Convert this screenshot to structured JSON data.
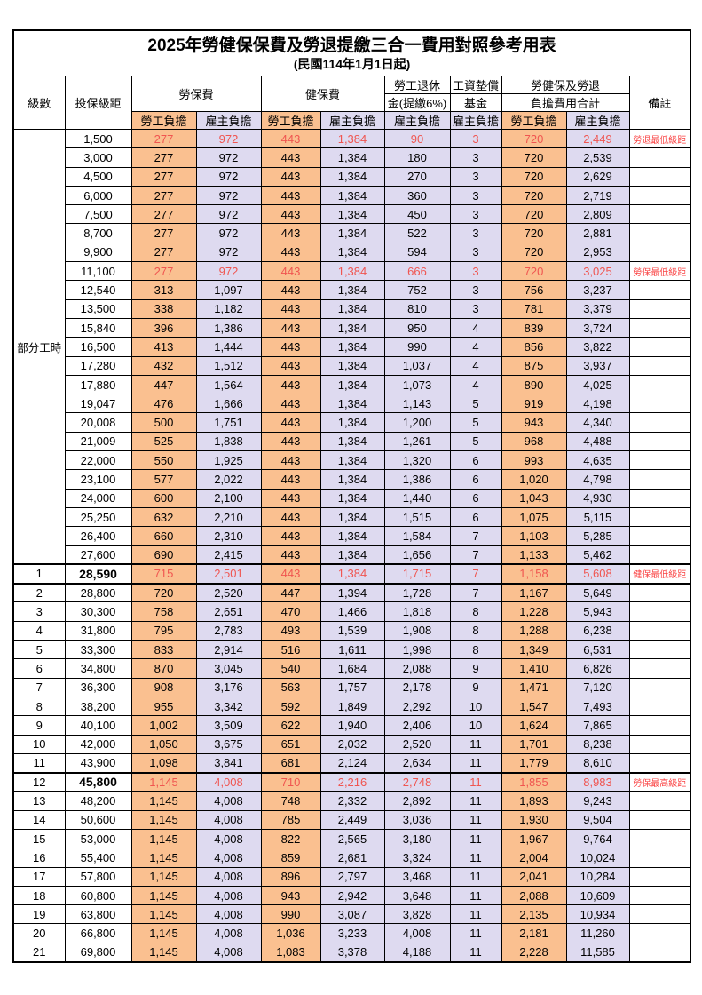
{
  "title": "2025年勞健保保費及勞退提繳三合一費用對照參考用表",
  "subtitle": "(民國114年1月1日起)",
  "colors": {
    "employee_bg": "#fac090",
    "employer_bg": "#dedaf0",
    "highlight_red": "#f05550",
    "remark_red": "#fa4343"
  },
  "header": {
    "level": "級數",
    "bracket": "投保級距",
    "labor_ins": "勞保費",
    "health_ins": "健保費",
    "pension_line1": "勞工退休",
    "pension_line2": "金(提繳6%)",
    "wage_fund_line1": "工資墊償",
    "wage_fund_line2": "基金",
    "total_line1": "勞健保及勞退",
    "total_line2": "負擔費用合計",
    "remark": "備註",
    "employee": "勞工負擔",
    "employer": "雇主負擔"
  },
  "part_time_label": "部分工時",
  "rows": [
    {
      "level": "",
      "bracket": "1,500",
      "cells": [
        "277",
        "972",
        "443",
        "1,384",
        "90",
        "3",
        "720",
        "2,449"
      ],
      "remark": "勞退最低級距",
      "highlight": true,
      "bold": false
    },
    {
      "level": "",
      "bracket": "3,000",
      "cells": [
        "277",
        "972",
        "443",
        "1,384",
        "180",
        "3",
        "720",
        "2,539"
      ],
      "remark": "",
      "highlight": false,
      "bold": false
    },
    {
      "level": "",
      "bracket": "4,500",
      "cells": [
        "277",
        "972",
        "443",
        "1,384",
        "270",
        "3",
        "720",
        "2,629"
      ],
      "remark": "",
      "highlight": false,
      "bold": false
    },
    {
      "level": "",
      "bracket": "6,000",
      "cells": [
        "277",
        "972",
        "443",
        "1,384",
        "360",
        "3",
        "720",
        "2,719"
      ],
      "remark": "",
      "highlight": false,
      "bold": false
    },
    {
      "level": "",
      "bracket": "7,500",
      "cells": [
        "277",
        "972",
        "443",
        "1,384",
        "450",
        "3",
        "720",
        "2,809"
      ],
      "remark": "",
      "highlight": false,
      "bold": false
    },
    {
      "level": "",
      "bracket": "8,700",
      "cells": [
        "277",
        "972",
        "443",
        "1,384",
        "522",
        "3",
        "720",
        "2,881"
      ],
      "remark": "",
      "highlight": false,
      "bold": false
    },
    {
      "level": "",
      "bracket": "9,900",
      "cells": [
        "277",
        "972",
        "443",
        "1,384",
        "594",
        "3",
        "720",
        "2,953"
      ],
      "remark": "",
      "highlight": false,
      "bold": false
    },
    {
      "level": "",
      "bracket": "11,100",
      "cells": [
        "277",
        "972",
        "443",
        "1,384",
        "666",
        "3",
        "720",
        "3,025"
      ],
      "remark": "勞保最低級距",
      "highlight": true,
      "bold": false
    },
    {
      "level": "",
      "bracket": "12,540",
      "cells": [
        "313",
        "1,097",
        "443",
        "1,384",
        "752",
        "3",
        "756",
        "3,237"
      ],
      "remark": "",
      "highlight": false,
      "bold": false
    },
    {
      "level": "",
      "bracket": "13,500",
      "cells": [
        "338",
        "1,182",
        "443",
        "1,384",
        "810",
        "3",
        "781",
        "3,379"
      ],
      "remark": "",
      "highlight": false,
      "bold": false
    },
    {
      "level": "",
      "bracket": "15,840",
      "cells": [
        "396",
        "1,386",
        "443",
        "1,384",
        "950",
        "4",
        "839",
        "3,724"
      ],
      "remark": "",
      "highlight": false,
      "bold": false
    },
    {
      "level": "",
      "bracket": "16,500",
      "cells": [
        "413",
        "1,444",
        "443",
        "1,384",
        "990",
        "4",
        "856",
        "3,822"
      ],
      "remark": "",
      "highlight": false,
      "bold": false
    },
    {
      "level": "",
      "bracket": "17,280",
      "cells": [
        "432",
        "1,512",
        "443",
        "1,384",
        "1,037",
        "4",
        "875",
        "3,937"
      ],
      "remark": "",
      "highlight": false,
      "bold": false
    },
    {
      "level": "",
      "bracket": "17,880",
      "cells": [
        "447",
        "1,564",
        "443",
        "1,384",
        "1,073",
        "4",
        "890",
        "4,025"
      ],
      "remark": "",
      "highlight": false,
      "bold": false
    },
    {
      "level": "",
      "bracket": "19,047",
      "cells": [
        "476",
        "1,666",
        "443",
        "1,384",
        "1,143",
        "5",
        "919",
        "4,198"
      ],
      "remark": "",
      "highlight": false,
      "bold": false
    },
    {
      "level": "",
      "bracket": "20,008",
      "cells": [
        "500",
        "1,751",
        "443",
        "1,384",
        "1,200",
        "5",
        "943",
        "4,340"
      ],
      "remark": "",
      "highlight": false,
      "bold": false
    },
    {
      "level": "",
      "bracket": "21,009",
      "cells": [
        "525",
        "1,838",
        "443",
        "1,384",
        "1,261",
        "5",
        "968",
        "4,488"
      ],
      "remark": "",
      "highlight": false,
      "bold": false
    },
    {
      "level": "",
      "bracket": "22,000",
      "cells": [
        "550",
        "1,925",
        "443",
        "1,384",
        "1,320",
        "6",
        "993",
        "4,635"
      ],
      "remark": "",
      "highlight": false,
      "bold": false
    },
    {
      "level": "",
      "bracket": "23,100",
      "cells": [
        "577",
        "2,022",
        "443",
        "1,384",
        "1,386",
        "6",
        "1,020",
        "4,798"
      ],
      "remark": "",
      "highlight": false,
      "bold": false
    },
    {
      "level": "",
      "bracket": "24,000",
      "cells": [
        "600",
        "2,100",
        "443",
        "1,384",
        "1,440",
        "6",
        "1,043",
        "4,930"
      ],
      "remark": "",
      "highlight": false,
      "bold": false
    },
    {
      "level": "",
      "bracket": "25,250",
      "cells": [
        "632",
        "2,210",
        "443",
        "1,384",
        "1,515",
        "6",
        "1,075",
        "5,115"
      ],
      "remark": "",
      "highlight": false,
      "bold": false
    },
    {
      "level": "",
      "bracket": "26,400",
      "cells": [
        "660",
        "2,310",
        "443",
        "1,384",
        "1,584",
        "7",
        "1,103",
        "5,285"
      ],
      "remark": "",
      "highlight": false,
      "bold": false
    },
    {
      "level": "",
      "bracket": "27,600",
      "cells": [
        "690",
        "2,415",
        "443",
        "1,384",
        "1,656",
        "7",
        "1,133",
        "5,462"
      ],
      "remark": "",
      "highlight": false,
      "bold": false
    },
    {
      "level": "1",
      "bracket": "28,590",
      "cells": [
        "715",
        "2,501",
        "443",
        "1,384",
        "1,715",
        "7",
        "1,158",
        "5,608"
      ],
      "remark": "健保最低級距",
      "highlight": true,
      "bold": true
    },
    {
      "level": "2",
      "bracket": "28,800",
      "cells": [
        "720",
        "2,520",
        "447",
        "1,394",
        "1,728",
        "7",
        "1,167",
        "5,649"
      ],
      "remark": "",
      "highlight": false,
      "bold": false
    },
    {
      "level": "3",
      "bracket": "30,300",
      "cells": [
        "758",
        "2,651",
        "470",
        "1,466",
        "1,818",
        "8",
        "1,228",
        "5,943"
      ],
      "remark": "",
      "highlight": false,
      "bold": false
    },
    {
      "level": "4",
      "bracket": "31,800",
      "cells": [
        "795",
        "2,783",
        "493",
        "1,539",
        "1,908",
        "8",
        "1,288",
        "6,238"
      ],
      "remark": "",
      "highlight": false,
      "bold": false
    },
    {
      "level": "5",
      "bracket": "33,300",
      "cells": [
        "833",
        "2,914",
        "516",
        "1,611",
        "1,998",
        "8",
        "1,349",
        "6,531"
      ],
      "remark": "",
      "highlight": false,
      "bold": false
    },
    {
      "level": "6",
      "bracket": "34,800",
      "cells": [
        "870",
        "3,045",
        "540",
        "1,684",
        "2,088",
        "9",
        "1,410",
        "6,826"
      ],
      "remark": "",
      "highlight": false,
      "bold": false
    },
    {
      "level": "7",
      "bracket": "36,300",
      "cells": [
        "908",
        "3,176",
        "563",
        "1,757",
        "2,178",
        "9",
        "1,471",
        "7,120"
      ],
      "remark": "",
      "highlight": false,
      "bold": false
    },
    {
      "level": "8",
      "bracket": "38,200",
      "cells": [
        "955",
        "3,342",
        "592",
        "1,849",
        "2,292",
        "10",
        "1,547",
        "7,493"
      ],
      "remark": "",
      "highlight": false,
      "bold": false
    },
    {
      "level": "9",
      "bracket": "40,100",
      "cells": [
        "1,002",
        "3,509",
        "622",
        "1,940",
        "2,406",
        "10",
        "1,624",
        "7,865"
      ],
      "remark": "",
      "highlight": false,
      "bold": false
    },
    {
      "level": "10",
      "bracket": "42,000",
      "cells": [
        "1,050",
        "3,675",
        "651",
        "2,032",
        "2,520",
        "11",
        "1,701",
        "8,238"
      ],
      "remark": "",
      "highlight": false,
      "bold": false
    },
    {
      "level": "11",
      "bracket": "43,900",
      "cells": [
        "1,098",
        "3,841",
        "681",
        "2,124",
        "2,634",
        "11",
        "1,779",
        "8,610"
      ],
      "remark": "",
      "highlight": false,
      "bold": false
    },
    {
      "level": "12",
      "bracket": "45,800",
      "cells": [
        "1,145",
        "4,008",
        "710",
        "2,216",
        "2,748",
        "11",
        "1,855",
        "8,983"
      ],
      "remark": "勞保最高級距",
      "highlight": true,
      "bold": true
    },
    {
      "level": "13",
      "bracket": "48,200",
      "cells": [
        "1,145",
        "4,008",
        "748",
        "2,332",
        "2,892",
        "11",
        "1,893",
        "9,243"
      ],
      "remark": "",
      "highlight": false,
      "bold": false
    },
    {
      "level": "14",
      "bracket": "50,600",
      "cells": [
        "1,145",
        "4,008",
        "785",
        "2,449",
        "3,036",
        "11",
        "1,930",
        "9,504"
      ],
      "remark": "",
      "highlight": false,
      "bold": false
    },
    {
      "level": "15",
      "bracket": "53,000",
      "cells": [
        "1,145",
        "4,008",
        "822",
        "2,565",
        "3,180",
        "11",
        "1,967",
        "9,764"
      ],
      "remark": "",
      "highlight": false,
      "bold": false
    },
    {
      "level": "16",
      "bracket": "55,400",
      "cells": [
        "1,145",
        "4,008",
        "859",
        "2,681",
        "3,324",
        "11",
        "2,004",
        "10,024"
      ],
      "remark": "",
      "highlight": false,
      "bold": false
    },
    {
      "level": "17",
      "bracket": "57,800",
      "cells": [
        "1,145",
        "4,008",
        "896",
        "2,797",
        "3,468",
        "11",
        "2,041",
        "10,284"
      ],
      "remark": "",
      "highlight": false,
      "bold": false
    },
    {
      "level": "18",
      "bracket": "60,800",
      "cells": [
        "1,145",
        "4,008",
        "943",
        "2,942",
        "3,648",
        "11",
        "2,088",
        "10,609"
      ],
      "remark": "",
      "highlight": false,
      "bold": false
    },
    {
      "level": "19",
      "bracket": "63,800",
      "cells": [
        "1,145",
        "4,008",
        "990",
        "3,087",
        "3,828",
        "11",
        "2,135",
        "10,934"
      ],
      "remark": "",
      "highlight": false,
      "bold": false
    },
    {
      "level": "20",
      "bracket": "66,800",
      "cells": [
        "1,145",
        "4,008",
        "1,036",
        "3,233",
        "4,008",
        "11",
        "2,181",
        "11,260"
      ],
      "remark": "",
      "highlight": false,
      "bold": false
    },
    {
      "level": "21",
      "bracket": "69,800",
      "cells": [
        "1,145",
        "4,008",
        "1,083",
        "3,378",
        "4,188",
        "11",
        "2,228",
        "11,585"
      ],
      "remark": "",
      "highlight": false,
      "bold": false
    }
  ]
}
